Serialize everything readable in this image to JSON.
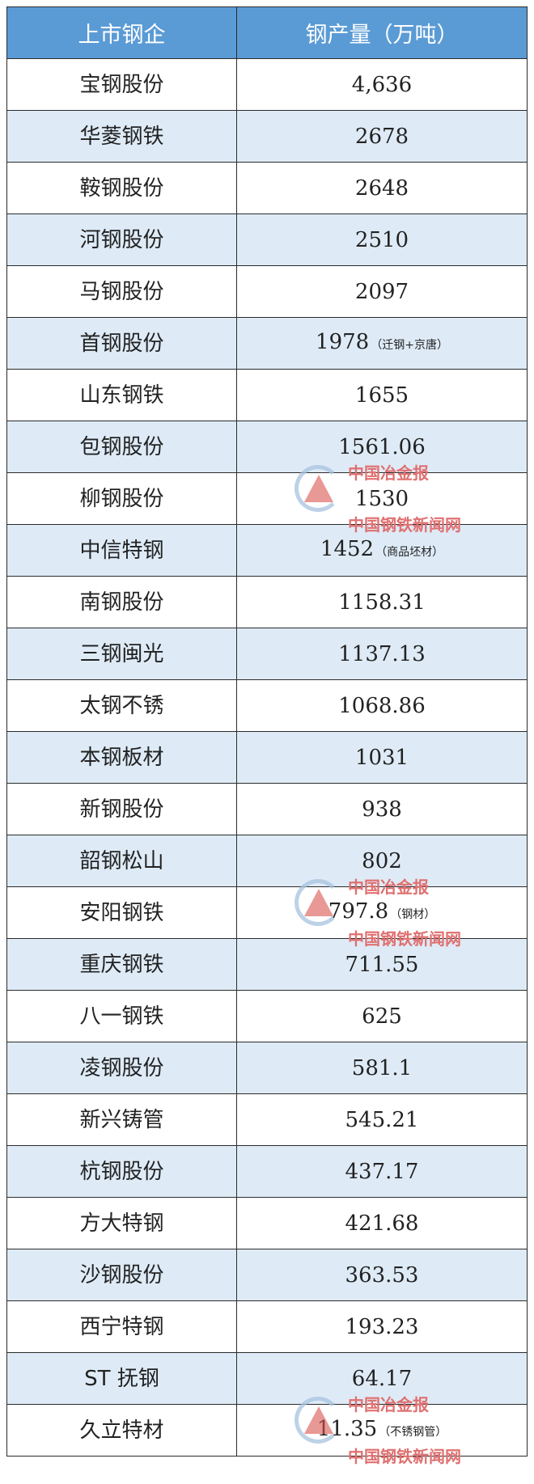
{
  "table": {
    "headers": [
      "上市钢企",
      "钢产量（万吨）"
    ],
    "rows": [
      {
        "company": "宝钢股份",
        "output": "4,636",
        "note": ""
      },
      {
        "company": "华菱钢铁",
        "output": "2678",
        "note": ""
      },
      {
        "company": "鞍钢股份",
        "output": "2648",
        "note": ""
      },
      {
        "company": "河钢股份",
        "output": "2510",
        "note": ""
      },
      {
        "company": "马钢股份",
        "output": "2097",
        "note": ""
      },
      {
        "company": "首钢股份",
        "output": "1978",
        "note": "（迁钢+京唐）"
      },
      {
        "company": "山东钢铁",
        "output": "1655",
        "note": ""
      },
      {
        "company": "包钢股份",
        "output": "1561.06",
        "note": ""
      },
      {
        "company": "柳钢股份",
        "output": "1530",
        "note": ""
      },
      {
        "company": "中信特钢",
        "output": "1452",
        "note": "（商品坯材）"
      },
      {
        "company": "南钢股份",
        "output": "1158.31",
        "note": ""
      },
      {
        "company": "三钢闽光",
        "output": "1137.13",
        "note": ""
      },
      {
        "company": "太钢不锈",
        "output": "1068.86",
        "note": ""
      },
      {
        "company": "本钢板材",
        "output": "1031",
        "note": ""
      },
      {
        "company": "新钢股份",
        "output": "938",
        "note": ""
      },
      {
        "company": "韶钢松山",
        "output": "802",
        "note": ""
      },
      {
        "company": "安阳钢铁",
        "output": "797.8",
        "note": "（钢材）"
      },
      {
        "company": "重庆钢铁",
        "output": "711.55",
        "note": ""
      },
      {
        "company": "八一钢铁",
        "output": "625",
        "note": ""
      },
      {
        "company": "凌钢股份",
        "output": "581.1",
        "note": ""
      },
      {
        "company": "新兴铸管",
        "output": "545.21",
        "note": ""
      },
      {
        "company": "杭钢股份",
        "output": "437.17",
        "note": ""
      },
      {
        "company": "方大特钢",
        "output": "421.68",
        "note": ""
      },
      {
        "company": "沙钢股份",
        "output": "363.53",
        "note": ""
      },
      {
        "company": "西宁特钢",
        "output": "193.23",
        "note": ""
      },
      {
        "company": "ST 抚钢",
        "output": "64.17",
        "note": ""
      },
      {
        "company": "久立特材",
        "output": "11.35",
        "note": "（不锈钢管）"
      }
    ]
  },
  "watermark": {
    "line1": "中国冶金报",
    "line2": "中国钢铁新闻网"
  },
  "colors": {
    "header_bg": "#5b9bd5",
    "alt_row_bg": "#deebf7"
  }
}
